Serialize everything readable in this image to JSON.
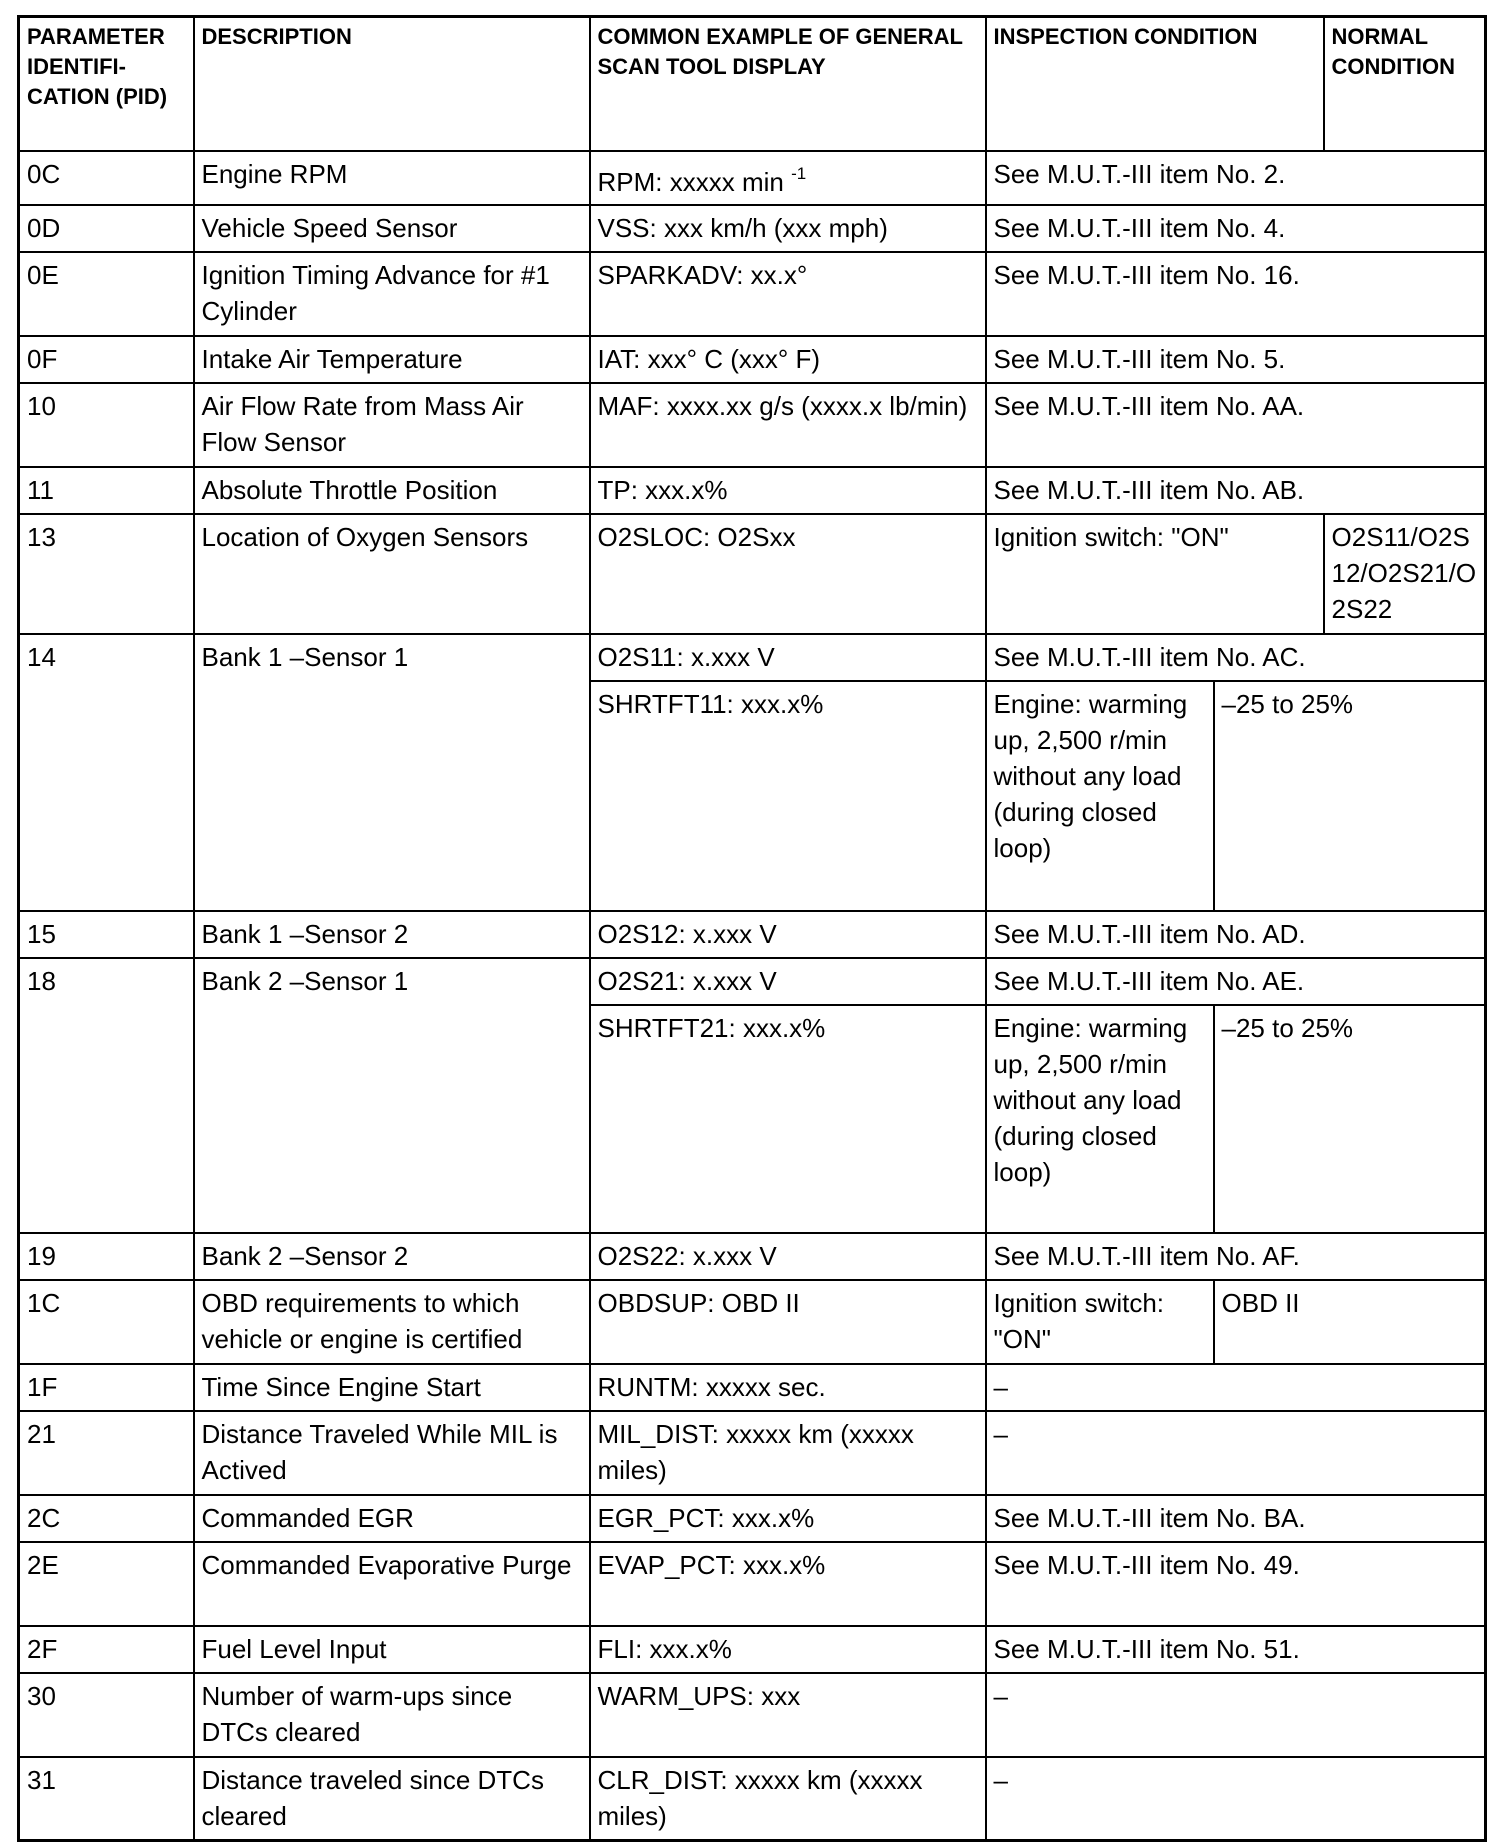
{
  "header": {
    "pid": "PARAMETER IDENTIFI-CATION (PID)",
    "description": "DESCRIPTION",
    "display": "COMMON EXAMPLE OF GENERAL SCAN TOOL DISPLAY",
    "inspection": "INSPECTION CONDITION",
    "normal": "NORMAL CONDITION"
  },
  "rows": [
    {
      "pid": "0C",
      "description": "Engine RPM",
      "sub": [
        {
          "display": "RPM: xxxxx min ",
          "display_sup": "-1",
          "inspection": "See M.U.T.-III item No. 2."
        }
      ]
    },
    {
      "pid": "0D",
      "description": "Vehicle Speed Sensor",
      "sub": [
        {
          "display": "VSS: xxx km/h (xxx mph)",
          "inspection": "See M.U.T.-III item No. 4."
        }
      ]
    },
    {
      "pid": "0E",
      "description": "Ignition Timing Advance for #1 Cylinder",
      "sub": [
        {
          "display": "SPARKADV: xx.x°",
          "inspection": "See M.U.T.-III item No. 16."
        }
      ]
    },
    {
      "pid": "0F",
      "description": "Intake Air Temperature",
      "sub": [
        {
          "display": "IAT: xxx° C (xxx° F)",
          "inspection": "See M.U.T.-III item No. 5."
        }
      ]
    },
    {
      "pid": "10",
      "description": "Air Flow Rate from Mass Air Flow Sensor",
      "sub": [
        {
          "display": "MAF: xxxx.xx g/s (xxxx.x lb/min)",
          "inspection": "See M.U.T.-III item No. AA."
        }
      ]
    },
    {
      "pid": "11",
      "description": "Absolute Throttle Position",
      "sub": [
        {
          "display": "TP: xxx.x%",
          "inspection": "See M.U.T.-III item No. AB."
        }
      ]
    },
    {
      "pid": "13",
      "description": "Location of Oxygen Sensors",
      "sub": [
        {
          "display": "O2SLOC: O2Sxx",
          "inspection": "Ignition switch: \"ON\"",
          "normal": "O2S11/O2S12/O2S21/O2S22"
        }
      ]
    },
    {
      "pid": "14",
      "description": "Bank 1 –Sensor 1",
      "sub": [
        {
          "display": "O2S11: x.xxx V",
          "inspection": "See M.U.T.-III item No. AC."
        },
        {
          "display": "SHRTFT11: xxx.x%",
          "inspection": "Engine: warming up, 2,500 r/min without any load (during closed loop)",
          "normal": "–25 to 25%"
        }
      ]
    },
    {
      "pid": "15",
      "description": "Bank 1 –Sensor 2",
      "sub": [
        {
          "display": "O2S12: x.xxx V",
          "inspection": "See M.U.T.-III item No. AD."
        }
      ]
    },
    {
      "pid": "18",
      "description": "Bank 2 –Sensor 1",
      "sub": [
        {
          "display": "O2S21: x.xxx V",
          "inspection": "See M.U.T.-III item No. AE."
        },
        {
          "display": "SHRTFT21: xxx.x%",
          "inspection": "Engine: warming up, 2,500 r/min without any load (during closed loop)",
          "normal": "–25 to 25%"
        }
      ]
    },
    {
      "pid": "19",
      "description": "Bank 2 –Sensor 2",
      "sub": [
        {
          "display": "O2S22: x.xxx V",
          "inspection": "See M.U.T.-III item No. AF."
        }
      ]
    },
    {
      "pid": "1C",
      "description": "OBD requirements to which vehicle or engine is certified",
      "sub": [
        {
          "display": "OBDSUP: OBD II",
          "inspection": "Ignition switch: \"ON\"",
          "normal": "OBD II"
        }
      ]
    },
    {
      "pid": "1F",
      "description": "Time Since Engine Start",
      "sub": [
        {
          "display": "RUNTM: xxxxx sec.",
          "inspection": "–"
        }
      ]
    },
    {
      "pid": "21",
      "description": "Distance Traveled While MIL is Actived",
      "sub": [
        {
          "display": "MIL_DIST: xxxxx km (xxxxx miles)",
          "inspection": "–"
        }
      ]
    },
    {
      "pid": "2C",
      "description": "Commanded EGR",
      "sub": [
        {
          "display": "EGR_PCT: xxx.x%",
          "inspection": "See M.U.T.-III item No. BA."
        }
      ]
    },
    {
      "pid": "2E",
      "description": "Commanded Evaporative Purge",
      "sub": [
        {
          "display": "EVAP_PCT: xxx.x%",
          "inspection": "See M.U.T.-III item No. 49."
        }
      ]
    },
    {
      "pid": "2F",
      "description": "Fuel Level Input",
      "sub": [
        {
          "display": "FLI: xxx.x%",
          "inspection": "See M.U.T.-III item No. 51."
        }
      ]
    },
    {
      "pid": "30",
      "description": "Number of warm-ups since DTCs cleared",
      "sub": [
        {
          "display": "WARM_UPS: xxx",
          "inspection": "–"
        }
      ]
    },
    {
      "pid": "31",
      "description": "Distance traveled since DTCs cleared",
      "sub": [
        {
          "display": "CLR_DIST: xxxxx km (xxxxx miles)",
          "inspection": "–"
        }
      ]
    }
  ]
}
